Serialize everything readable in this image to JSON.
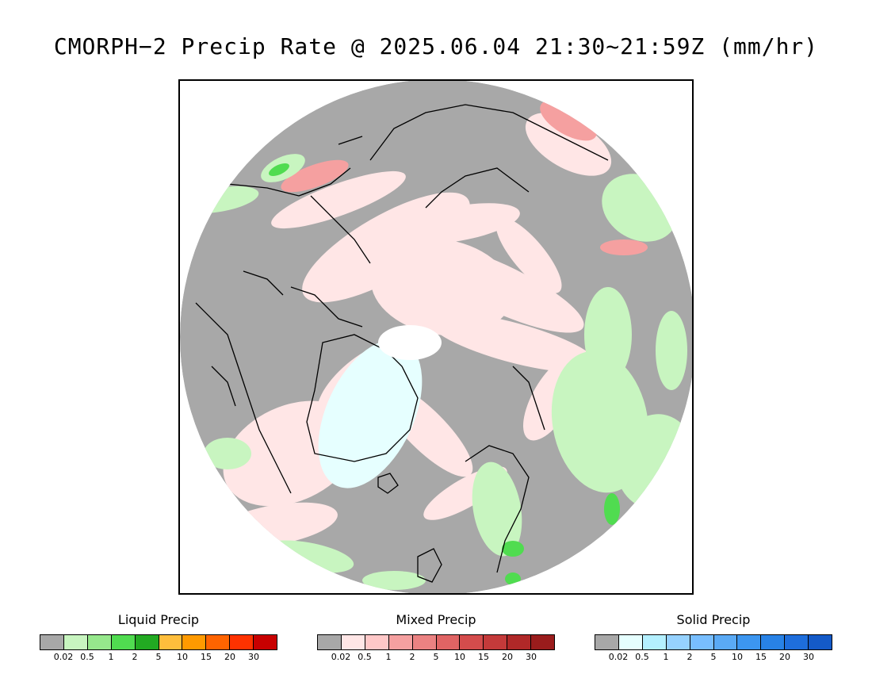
{
  "title": "CMORPH−2 Precip Rate @ 2025.06.04 21:30~21:59Z (mm/hr)",
  "map": {
    "projection": "north-polar-stereographic",
    "colors": {
      "no_data_gray": "#a8a8a8",
      "pole_hole": "#ffffff",
      "coastline": "#000000"
    }
  },
  "legends": [
    {
      "id": "liquid",
      "title": "Liquid Precip",
      "ticks": [
        "0.02",
        "0.5",
        "1",
        "2",
        "5",
        "10",
        "15",
        "20",
        "30"
      ],
      "colors": [
        "#a8a8a8",
        "#c8f5c0",
        "#96e88c",
        "#50dc50",
        "#22aa22",
        "#ffbe3c",
        "#ff9a00",
        "#ff6400",
        "#ff3200",
        "#c80000"
      ]
    },
    {
      "id": "mixed",
      "title": "Mixed Precip",
      "ticks": [
        "0.02",
        "0.5",
        "1",
        "2",
        "5",
        "10",
        "15",
        "20",
        "30"
      ],
      "colors": [
        "#a8a8a8",
        "#ffe6e6",
        "#ffc8c8",
        "#f5a0a0",
        "#eb8282",
        "#e06464",
        "#d44c4c",
        "#c43a3a",
        "#b02828",
        "#9a1c1c"
      ]
    },
    {
      "id": "solid",
      "title": "Solid Precip",
      "ticks": [
        "0.02",
        "0.5",
        "1",
        "2",
        "5",
        "10",
        "15",
        "20",
        "30"
      ],
      "colors": [
        "#a8a8a8",
        "#e6ffff",
        "#b4f0ff",
        "#96d2ff",
        "#78beff",
        "#5aaaf5",
        "#3c96f0",
        "#2882e6",
        "#1e6edc",
        "#145ac8"
      ]
    }
  ]
}
